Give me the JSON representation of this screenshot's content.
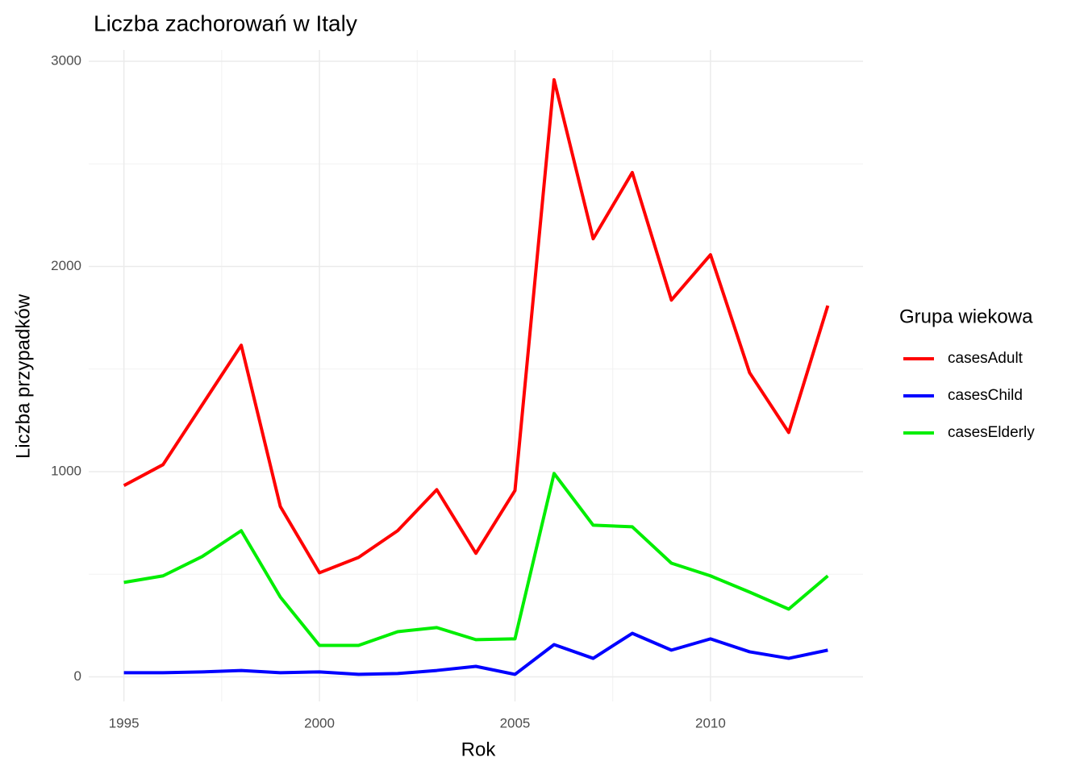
{
  "chart_data": {
    "type": "line",
    "title": "Liczba zachorowań w Italy",
    "x_label": "Rok",
    "y_label": "Liczba przypadków",
    "legend_title": "Grupa wiekowa",
    "legend_position": "right",
    "grid": true,
    "minor_grid": true,
    "x": [
      1995,
      1996,
      1997,
      1998,
      1999,
      2000,
      2001,
      2002,
      2003,
      2004,
      2005,
      2006,
      2007,
      2008,
      2009,
      2010,
      2011,
      2012,
      2013
    ],
    "series": [
      {
        "name": "casesAdult",
        "color": "#ff0000",
        "values": [
          932,
          1034,
          1325,
          1616,
          830,
          507,
          582,
          712,
          912,
          602,
          908,
          2910,
          2135,
          2458,
          1836,
          2057,
          1482,
          1191,
          1809
        ]
      },
      {
        "name": "casesChild",
        "color": "#0000ff",
        "values": [
          20,
          20,
          24,
          31,
          20,
          24,
          12,
          16,
          31,
          51,
          12,
          157,
          90,
          212,
          130,
          185,
          122,
          90,
          130
        ]
      },
      {
        "name": "casesElderly",
        "color": "#00ee00",
        "values": [
          460,
          492,
          586,
          712,
          389,
          153,
          153,
          220,
          240,
          181,
          185,
          991,
          739,
          731,
          554,
          492,
          413,
          330,
          492
        ]
      }
    ],
    "xlim": [
      1994.1,
      2013.9
    ],
    "xticks": [
      1995,
      2000,
      2005,
      2010
    ],
    "ylim": [
      -120,
      3055
    ],
    "yticks": [
      0,
      1000,
      2000,
      3000
    ]
  }
}
